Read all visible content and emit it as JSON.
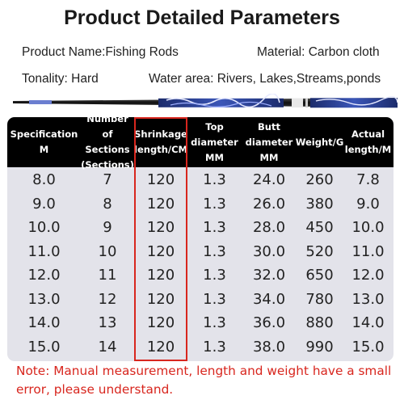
{
  "title": "Product Detailed Parameters",
  "params": {
    "name": "Product Name:Fishing Rods",
    "material": "Material: Carbon cloth",
    "tonality": "Tonality: Hard",
    "water": "Water area: Rivers, Lakes,Streams,ponds"
  },
  "table": {
    "headers": [
      "Specification\nM",
      "Number of\nSections\n(Sections)",
      "Shrinkage\nlength/CM",
      "Top\ndiameter\nMM",
      "Butt\ndiameter\nMM",
      "Weight/G",
      "Actual\nlength/M"
    ],
    "rows": [
      [
        "8.0",
        "7",
        "120",
        "1.3",
        "24.0",
        "260",
        "7.8"
      ],
      [
        "9.0",
        "8",
        "120",
        "1.3",
        "26.0",
        "380",
        "9.0"
      ],
      [
        "10.0",
        "9",
        "120",
        "1.3",
        "28.0",
        "450",
        "10.0"
      ],
      [
        "11.0",
        "10",
        "120",
        "1.3",
        "30.0",
        "520",
        "11.0"
      ],
      [
        "12.0",
        "11",
        "120",
        "1.3",
        "32.0",
        "650",
        "12.0"
      ],
      [
        "13.0",
        "12",
        "120",
        "1.3",
        "34.0",
        "780",
        "13.0"
      ],
      [
        "14.0",
        "13",
        "120",
        "1.3",
        "36.0",
        "880",
        "14.0"
      ],
      [
        "15.0",
        "14",
        "120",
        "1.3",
        "38.0",
        "990",
        "15.0"
      ]
    ]
  },
  "note": "Note: Manual measurement, length and weight have a small error, please understand.",
  "colors": {
    "accent": "#d8261e",
    "header_bg": "#000000",
    "table_bg": "#e3e3ea"
  }
}
